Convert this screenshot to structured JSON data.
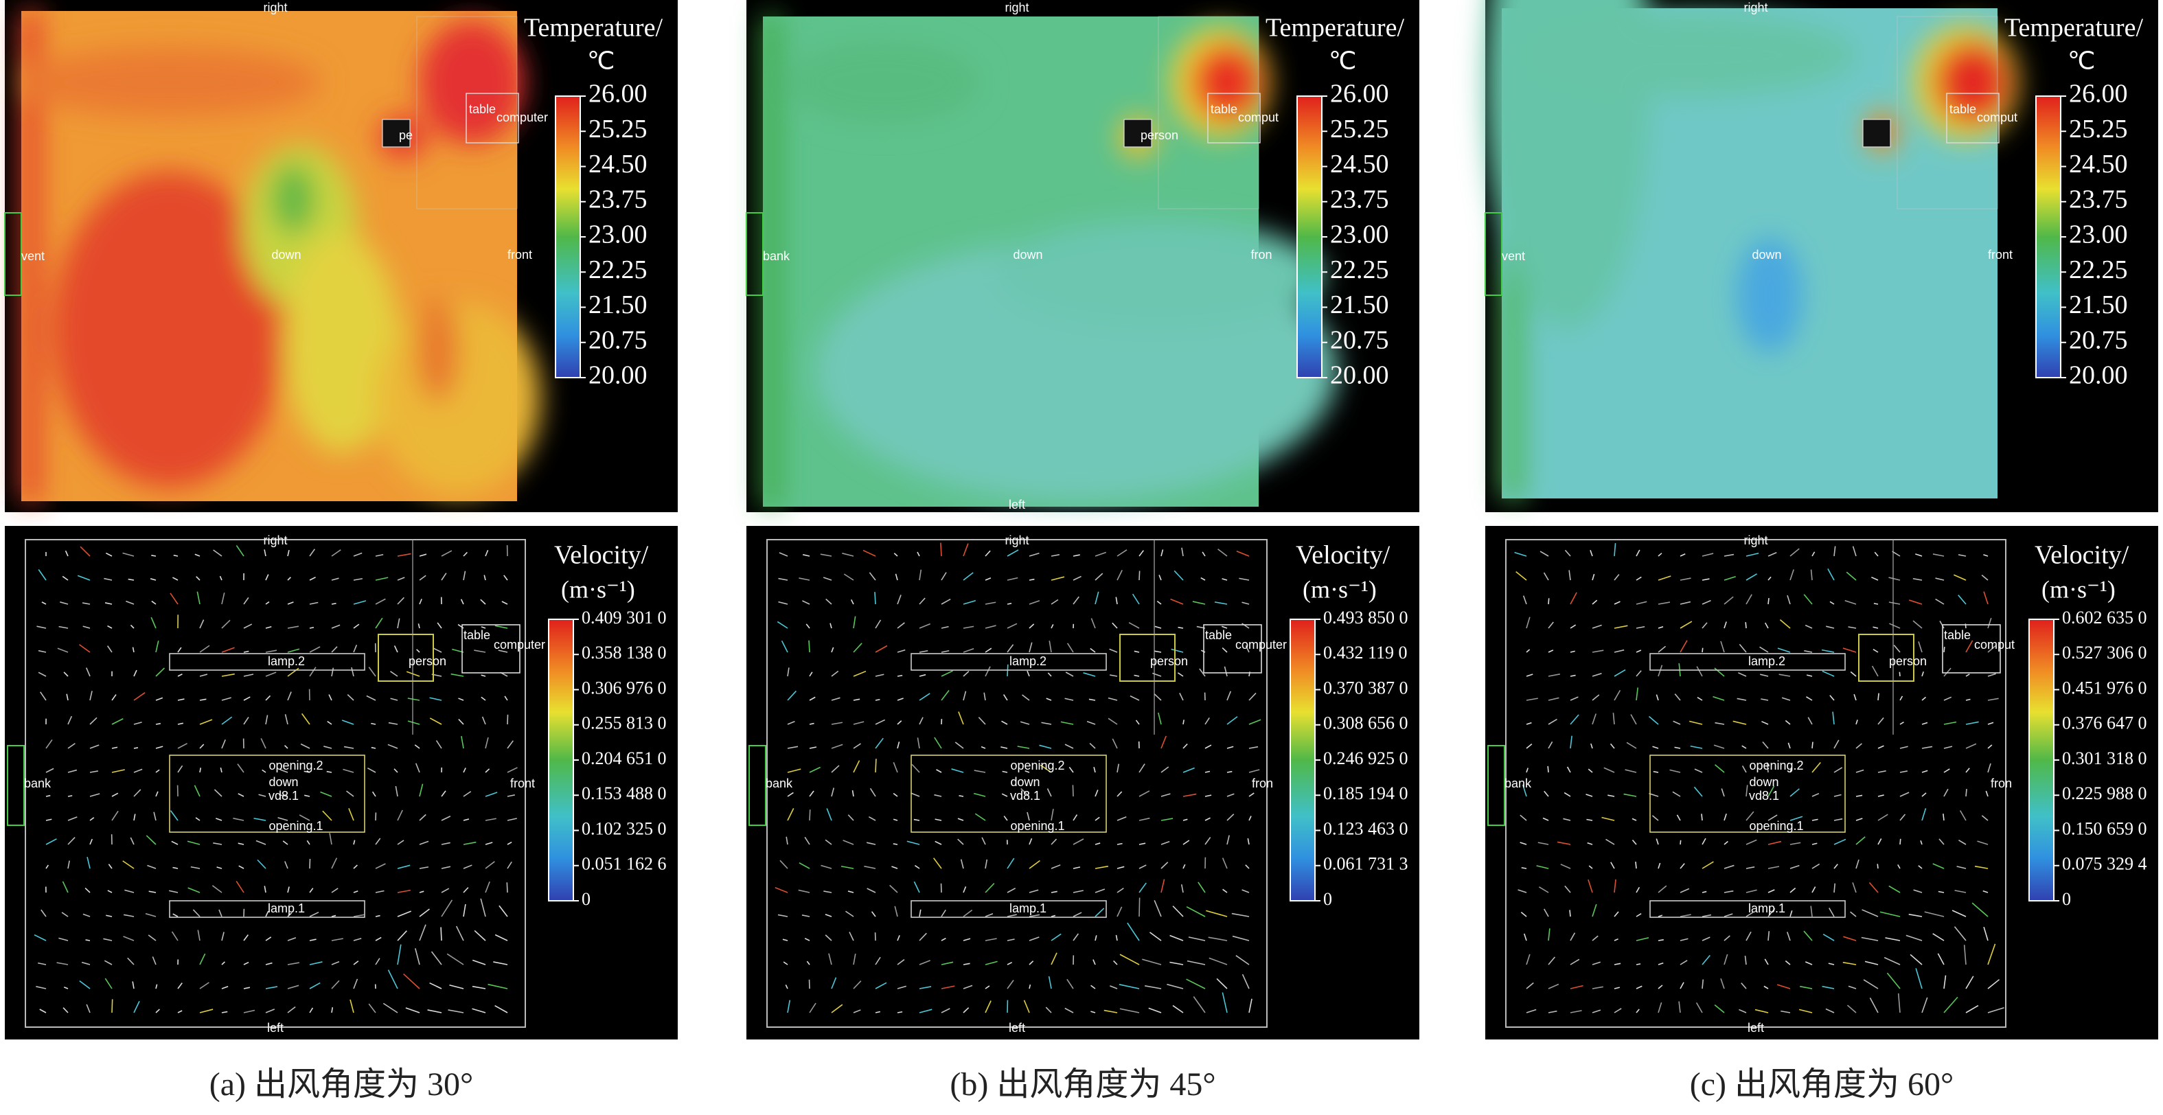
{
  "panels": [
    {
      "caption": "(a) 出风角度为 30°",
      "temperature": {
        "title": "Temperature/",
        "unit": "℃",
        "ticks": [
          "26.00",
          "25.25",
          "24.50",
          "23.75",
          "23.00",
          "22.25",
          "21.50",
          "20.75",
          "20.00"
        ],
        "labels": {
          "top": "right",
          "left": "vent",
          "center": "down",
          "right": "front",
          "table": "table",
          "computer": "computer",
          "person": "pe"
        }
      },
      "velocity": {
        "title": "Velocity/",
        "unit": "(m·s⁻¹)",
        "ticks": [
          "0.409 301 0",
          "0.358 138 0",
          "0.306 976 0",
          "0.255 813 0",
          "0.204 651 0",
          "0.153 488 0",
          "0.102 325 0",
          "0.051 162 6",
          "0"
        ],
        "labels": {
          "top": "right",
          "left": "bank",
          "right": "front",
          "bottom": "left",
          "table": "table",
          "computer": "computer",
          "person": "person",
          "lamp2": "lamp.2",
          "opening2": "opening.2",
          "down": "down",
          "vd": "vd8.1",
          "opening1": "opening.1",
          "lamp1": "lamp.1"
        }
      }
    },
    {
      "caption": "(b) 出风角度为 45°",
      "temperature": {
        "title": "Temperature/",
        "unit": "℃",
        "ticks": [
          "26.00",
          "25.25",
          "24.50",
          "23.75",
          "23.00",
          "22.25",
          "21.50",
          "20.75",
          "20.00"
        ],
        "labels": {
          "top": "right",
          "left": "bank",
          "center": "down",
          "right": "fron",
          "bottom": "left",
          "table": "table",
          "computer": "comput",
          "person": "person"
        }
      },
      "velocity": {
        "title": "Velocity/",
        "unit": "(m·s⁻¹)",
        "ticks": [
          "0.493 850 0",
          "0.432 119 0",
          "0.370 387 0",
          "0.308 656 0",
          "0.246 925 0",
          "0.185 194 0",
          "0.123 463 0",
          "0.061 731 3",
          "0"
        ],
        "labels": {
          "top": "right",
          "left": "bank",
          "right": "fron",
          "bottom": "left",
          "table": "table",
          "computer": "computer",
          "person": "person",
          "lamp2": "lamp.2",
          "opening2": "opening.2",
          "down": "down",
          "vd": "vd8.1",
          "opening1": "opening.1",
          "lamp1": "lamp.1"
        }
      }
    },
    {
      "caption": "(c) 出风角度为 60°",
      "temperature": {
        "title": "Temperature/",
        "unit": "℃",
        "ticks": [
          "26.00",
          "25.25",
          "24.50",
          "23.75",
          "23.00",
          "22.25",
          "21.50",
          "20.75",
          "20.00"
        ],
        "labels": {
          "top": "right",
          "left": "vent",
          "center": "down",
          "right": "front",
          "table": "table",
          "computer": "comput"
        }
      },
      "velocity": {
        "title": "Velocity/",
        "unit": "(m·s⁻¹)",
        "ticks": [
          "0.602 635 0",
          "0.527 306 0",
          "0.451 976 0",
          "0.376 647 0",
          "0.301 318 0",
          "0.225 988 0",
          "0.150 659 0",
          "0.075 329 4",
          "0"
        ],
        "labels": {
          "top": "right",
          "left": "bank",
          "right": "fron",
          "bottom": "left",
          "table": "table",
          "computer": "comput",
          "person": "person",
          "lamp2": "lamp.2",
          "opening2": "opening.2",
          "down": "down",
          "vd": "vd8.1",
          "opening1": "opening.1",
          "lamp1": "lamp.1"
        }
      }
    }
  ]
}
